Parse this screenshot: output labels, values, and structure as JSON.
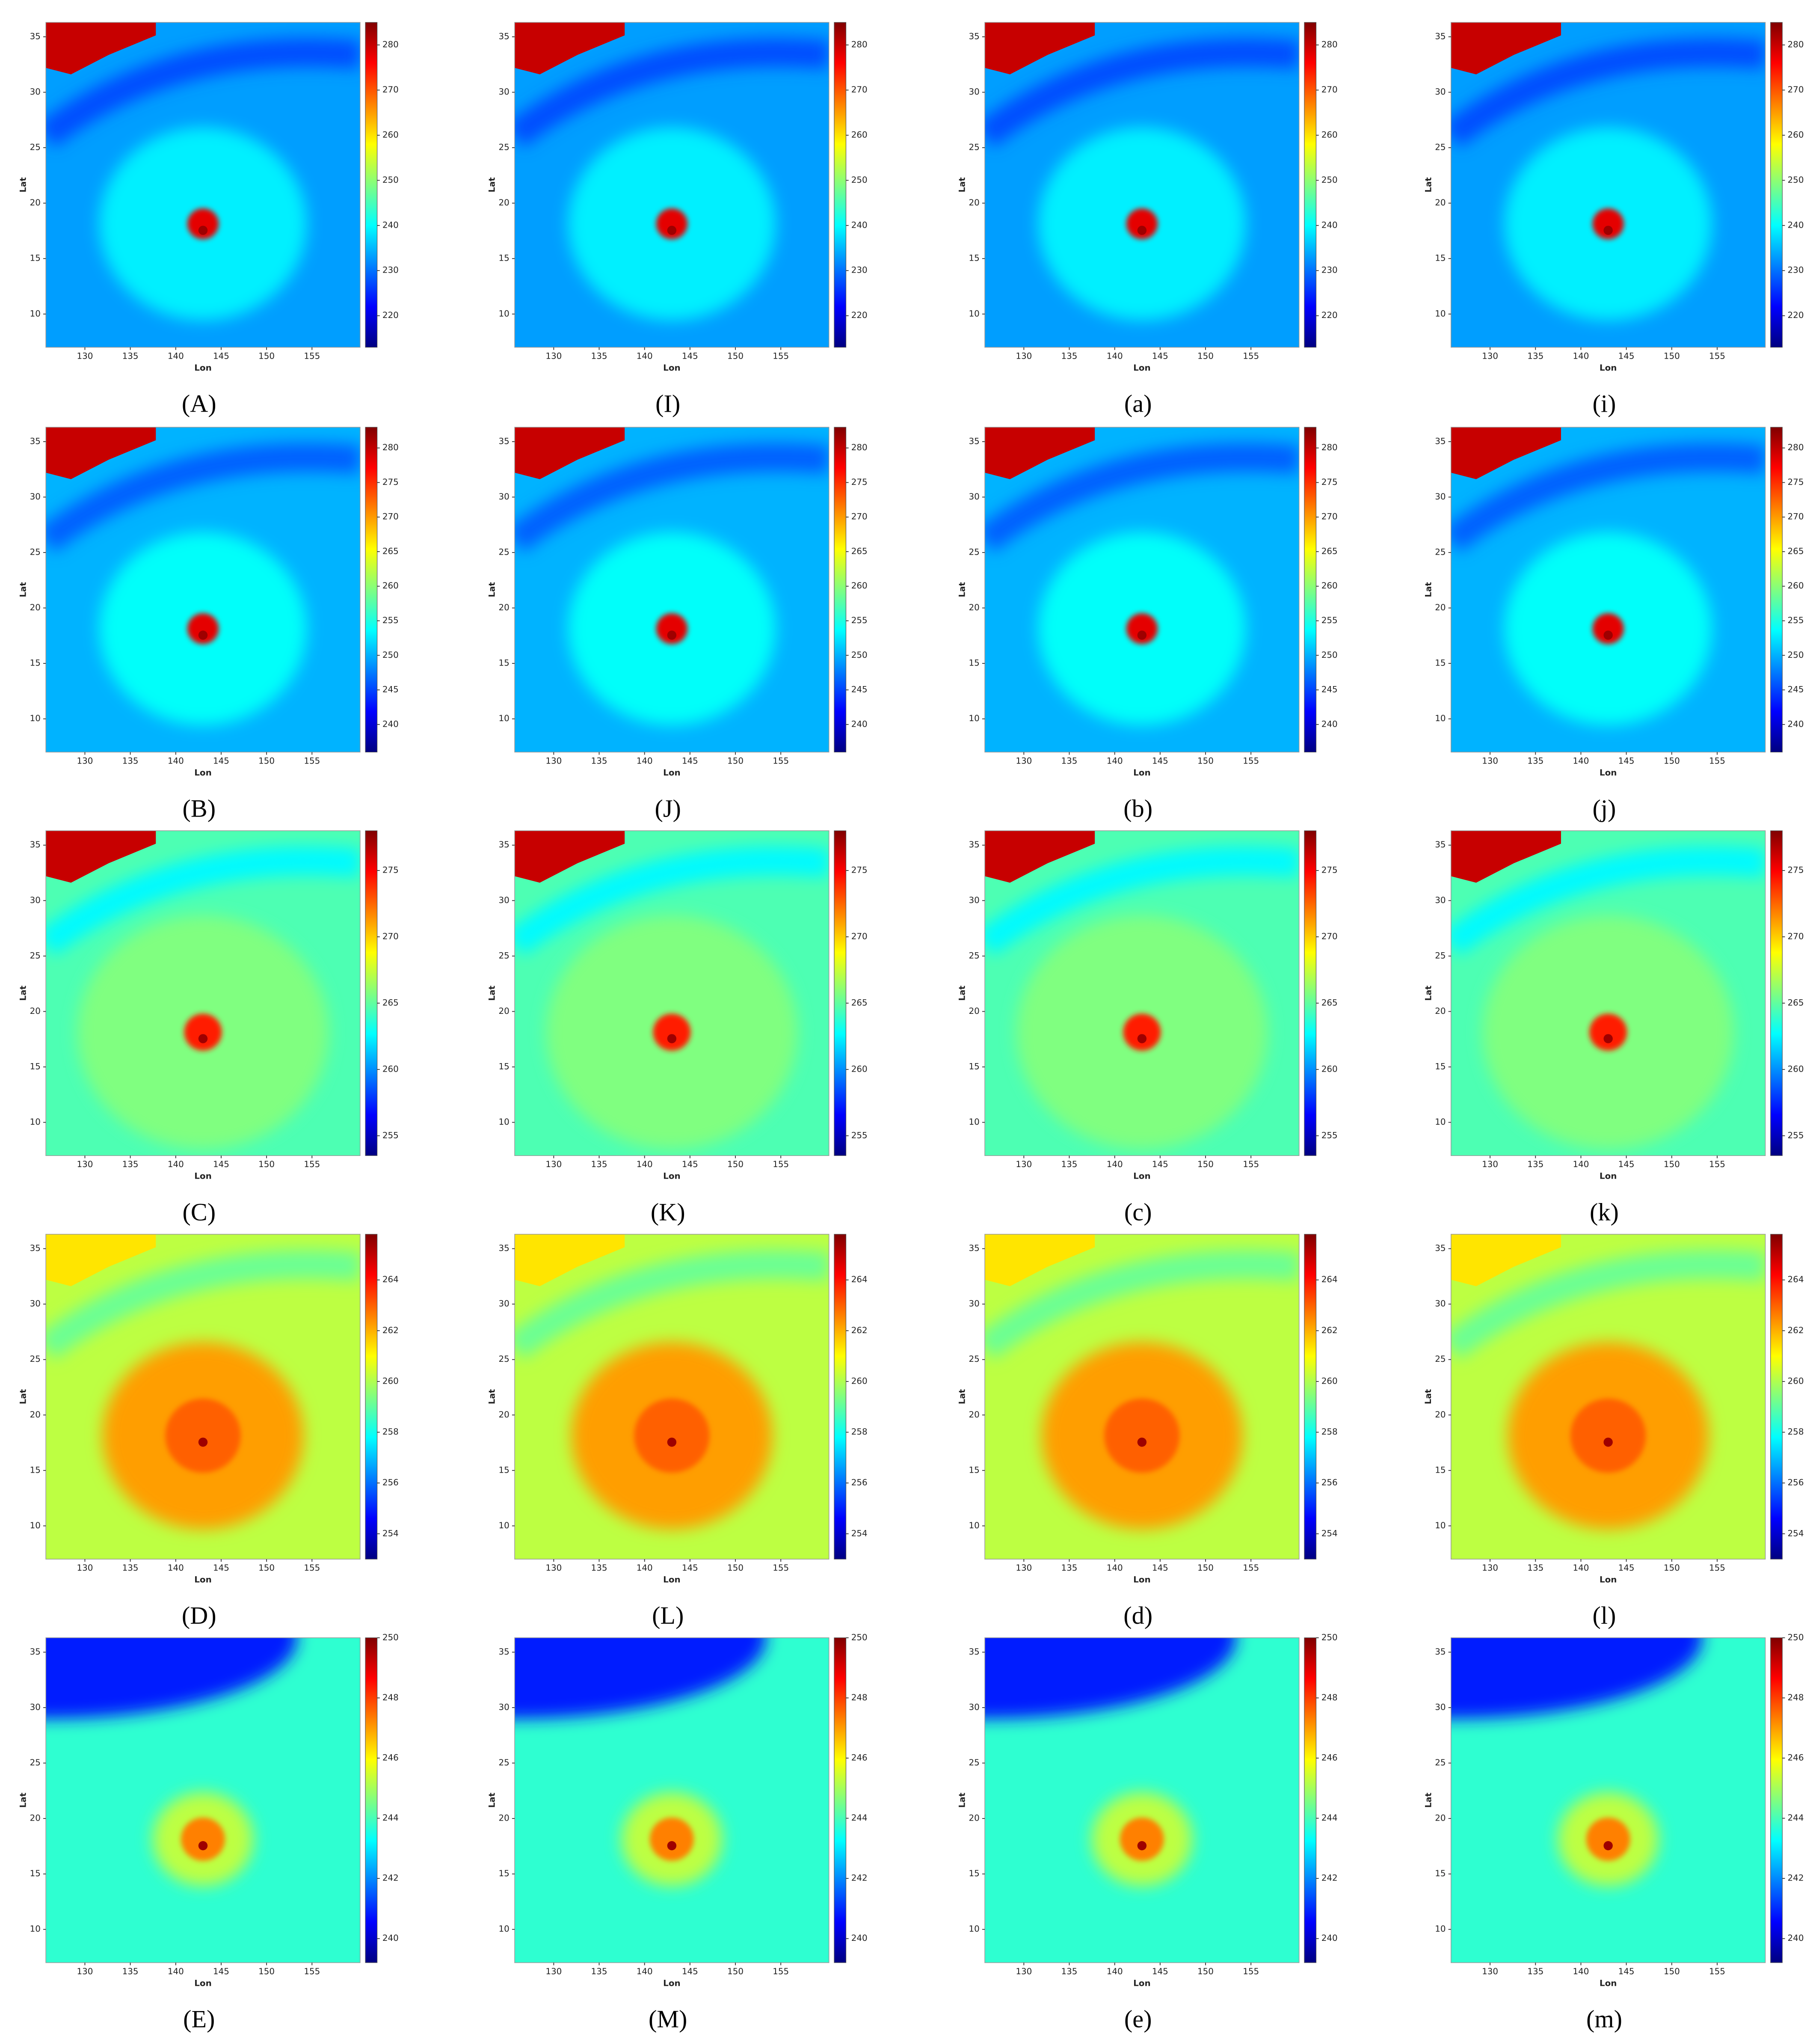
{
  "chart_data": [
    {
      "type": "heatmap",
      "label": "(A)",
      "xlabel": "Lon",
      "ylabel": "Lat",
      "xlim": [
        125.7,
        160.3
      ],
      "ylim": [
        7,
        36.3
      ],
      "xticks": [
        130,
        135,
        140,
        145,
        150,
        155
      ],
      "yticks": [
        10,
        15,
        20,
        25,
        30,
        35
      ],
      "colorbar_lim": [
        213,
        285
      ],
      "colorbar_ticks": [
        220,
        230,
        240,
        250,
        260,
        270,
        280
      ],
      "colormap": "jet"
    },
    {
      "type": "heatmap",
      "label": "(I)",
      "xlabel": "Lon",
      "ylabel": "Lat",
      "xlim": [
        125.7,
        160.3
      ],
      "ylim": [
        7,
        36.3
      ],
      "xticks": [
        130,
        135,
        140,
        145,
        150,
        155
      ],
      "yticks": [
        10,
        15,
        20,
        25,
        30,
        35
      ],
      "colorbar_lim": [
        213,
        285
      ],
      "colorbar_ticks": [
        220,
        230,
        240,
        250,
        260,
        270,
        280
      ],
      "colormap": "jet"
    },
    {
      "type": "heatmap",
      "label": "(a)",
      "xlabel": "Lon",
      "ylabel": "Lat",
      "xlim": [
        125.7,
        160.3
      ],
      "ylim": [
        7,
        36.3
      ],
      "xticks": [
        130,
        135,
        140,
        145,
        150,
        155
      ],
      "yticks": [
        10,
        15,
        20,
        25,
        30,
        35
      ],
      "colorbar_lim": [
        213,
        285
      ],
      "colorbar_ticks": [
        220,
        230,
        240,
        250,
        260,
        270,
        280
      ],
      "colormap": "jet"
    },
    {
      "type": "heatmap",
      "label": "(i)",
      "xlabel": "Lon",
      "ylabel": "Lat",
      "xlim": [
        125.7,
        160.3
      ],
      "ylim": [
        7,
        36.3
      ],
      "xticks": [
        130,
        135,
        140,
        145,
        150,
        155
      ],
      "yticks": [
        10,
        15,
        20,
        25,
        30,
        35
      ],
      "colorbar_lim": [
        213,
        285
      ],
      "colorbar_ticks": [
        220,
        230,
        240,
        250,
        260,
        270,
        280
      ],
      "colormap": "jet"
    },
    {
      "type": "heatmap",
      "label": "(B)",
      "xlabel": "Lon",
      "ylabel": "Lat",
      "xlim": [
        125.7,
        160.3
      ],
      "ylim": [
        7,
        36.3
      ],
      "xticks": [
        130,
        135,
        140,
        145,
        150,
        155
      ],
      "yticks": [
        10,
        15,
        20,
        25,
        30,
        35
      ],
      "colorbar_lim": [
        236,
        283
      ],
      "colorbar_ticks": [
        240,
        245,
        250,
        255,
        260,
        265,
        270,
        275,
        280
      ],
      "colormap": "jet"
    },
    {
      "type": "heatmap",
      "label": "(J)",
      "xlabel": "Lon",
      "ylabel": "Lat",
      "xlim": [
        125.7,
        160.3
      ],
      "ylim": [
        7,
        36.3
      ],
      "xticks": [
        130,
        135,
        140,
        145,
        150,
        155
      ],
      "yticks": [
        10,
        15,
        20,
        25,
        30,
        35
      ],
      "colorbar_lim": [
        236,
        283
      ],
      "colorbar_ticks": [
        240,
        245,
        250,
        255,
        260,
        265,
        270,
        275,
        280
      ],
      "colormap": "jet"
    },
    {
      "type": "heatmap",
      "label": "(b)",
      "xlabel": "Lon",
      "ylabel": "Lat",
      "xlim": [
        125.7,
        160.3
      ],
      "ylim": [
        7,
        36.3
      ],
      "xticks": [
        130,
        135,
        140,
        145,
        150,
        155
      ],
      "yticks": [
        10,
        15,
        20,
        25,
        30,
        35
      ],
      "colorbar_lim": [
        236,
        283
      ],
      "colorbar_ticks": [
        240,
        245,
        250,
        255,
        260,
        265,
        270,
        275,
        280
      ],
      "colormap": "jet"
    },
    {
      "type": "heatmap",
      "label": "(j)",
      "xlabel": "Lon",
      "ylabel": "Lat",
      "xlim": [
        125.7,
        160.3
      ],
      "ylim": [
        7,
        36.3
      ],
      "xticks": [
        130,
        135,
        140,
        145,
        150,
        155
      ],
      "yticks": [
        10,
        15,
        20,
        25,
        30,
        35
      ],
      "colorbar_lim": [
        236,
        283
      ],
      "colorbar_ticks": [
        240,
        245,
        250,
        255,
        260,
        265,
        270,
        275,
        280
      ],
      "colormap": "jet"
    },
    {
      "type": "heatmap",
      "label": "(C)",
      "xlabel": "Lon",
      "ylabel": "Lat",
      "xlim": [
        125.7,
        160.3
      ],
      "ylim": [
        7,
        36.3
      ],
      "xticks": [
        130,
        135,
        140,
        145,
        150,
        155
      ],
      "yticks": [
        10,
        15,
        20,
        25,
        30,
        35
      ],
      "colorbar_lim": [
        253.5,
        278
      ],
      "colorbar_ticks": [
        255,
        260,
        265,
        270,
        275
      ],
      "colormap": "jet"
    },
    {
      "type": "heatmap",
      "label": "(K)",
      "xlabel": "Lon",
      "ylabel": "Lat",
      "xlim": [
        125.7,
        160.3
      ],
      "ylim": [
        7,
        36.3
      ],
      "xticks": [
        130,
        135,
        140,
        145,
        150,
        155
      ],
      "yticks": [
        10,
        15,
        20,
        25,
        30,
        35
      ],
      "colorbar_lim": [
        253.5,
        278
      ],
      "colorbar_ticks": [
        255,
        260,
        265,
        270,
        275
      ],
      "colormap": "jet"
    },
    {
      "type": "heatmap",
      "label": "(c)",
      "xlabel": "Lon",
      "ylabel": "Lat",
      "xlim": [
        125.7,
        160.3
      ],
      "ylim": [
        7,
        36.3
      ],
      "xticks": [
        130,
        135,
        140,
        145,
        150,
        155
      ],
      "yticks": [
        10,
        15,
        20,
        25,
        30,
        35
      ],
      "colorbar_lim": [
        253.5,
        278
      ],
      "colorbar_ticks": [
        255,
        260,
        265,
        270,
        275
      ],
      "colormap": "jet"
    },
    {
      "type": "heatmap",
      "label": "(k)",
      "xlabel": "Lon",
      "ylabel": "Lat",
      "xlim": [
        125.7,
        160.3
      ],
      "ylim": [
        7,
        36.3
      ],
      "xticks": [
        130,
        135,
        140,
        145,
        150,
        155
      ],
      "yticks": [
        10,
        15,
        20,
        25,
        30,
        35
      ],
      "colorbar_lim": [
        253.5,
        278
      ],
      "colorbar_ticks": [
        255,
        260,
        265,
        270,
        275
      ],
      "colormap": "jet"
    },
    {
      "type": "heatmap",
      "label": "(D)",
      "xlabel": "Lon",
      "ylabel": "Lat",
      "xlim": [
        125.7,
        160.3
      ],
      "ylim": [
        7,
        36.3
      ],
      "xticks": [
        130,
        135,
        140,
        145,
        150,
        155
      ],
      "yticks": [
        10,
        15,
        20,
        25,
        30,
        35
      ],
      "colorbar_lim": [
        253,
        265.8
      ],
      "colorbar_ticks": [
        254,
        256,
        258,
        260,
        262,
        264
      ],
      "colormap": "jet"
    },
    {
      "type": "heatmap",
      "label": "(L)",
      "xlabel": "Lon",
      "ylabel": "Lat",
      "xlim": [
        125.7,
        160.3
      ],
      "ylim": [
        7,
        36.3
      ],
      "xticks": [
        130,
        135,
        140,
        145,
        150,
        155
      ],
      "yticks": [
        10,
        15,
        20,
        25,
        30,
        35
      ],
      "colorbar_lim": [
        253,
        265.8
      ],
      "colorbar_ticks": [
        254,
        256,
        258,
        260,
        262,
        264
      ],
      "colormap": "jet"
    },
    {
      "type": "heatmap",
      "label": "(d)",
      "xlabel": "Lon",
      "ylabel": "Lat",
      "xlim": [
        125.7,
        160.3
      ],
      "ylim": [
        7,
        36.3
      ],
      "xticks": [
        130,
        135,
        140,
        145,
        150,
        155
      ],
      "yticks": [
        10,
        15,
        20,
        25,
        30,
        35
      ],
      "colorbar_lim": [
        253,
        265.8
      ],
      "colorbar_ticks": [
        254,
        256,
        258,
        260,
        262,
        264
      ],
      "colormap": "jet"
    },
    {
      "type": "heatmap",
      "label": "(l)",
      "xlabel": "Lon",
      "ylabel": "Lat",
      "xlim": [
        125.7,
        160.3
      ],
      "ylim": [
        7,
        36.3
      ],
      "xticks": [
        130,
        135,
        140,
        145,
        150,
        155
      ],
      "yticks": [
        10,
        15,
        20,
        25,
        30,
        35
      ],
      "colorbar_lim": [
        253,
        265.8
      ],
      "colorbar_ticks": [
        254,
        256,
        258,
        260,
        262,
        264
      ],
      "colormap": "jet"
    },
    {
      "type": "heatmap",
      "label": "(E)",
      "xlabel": "Lon",
      "ylabel": "Lat",
      "xlim": [
        125.7,
        160.3
      ],
      "ylim": [
        7,
        36.3
      ],
      "xticks": [
        130,
        135,
        140,
        145,
        150,
        155
      ],
      "yticks": [
        10,
        15,
        20,
        25,
        30,
        35
      ],
      "colorbar_lim": [
        239.2,
        250
      ],
      "colorbar_ticks": [
        240,
        242,
        244,
        246,
        248,
        250
      ],
      "colormap": "jet"
    },
    {
      "type": "heatmap",
      "label": "(M)",
      "xlabel": "Lon",
      "ylabel": "Lat",
      "xlim": [
        125.7,
        160.3
      ],
      "ylim": [
        7,
        36.3
      ],
      "xticks": [
        130,
        135,
        140,
        145,
        150,
        155
      ],
      "yticks": [
        10,
        15,
        20,
        25,
        30,
        35
      ],
      "colorbar_lim": [
        239.2,
        250
      ],
      "colorbar_ticks": [
        240,
        242,
        244,
        246,
        248,
        250
      ],
      "colormap": "jet"
    },
    {
      "type": "heatmap",
      "label": "(e)",
      "xlabel": "Lon",
      "ylabel": "Lat",
      "xlim": [
        125.7,
        160.3
      ],
      "ylim": [
        7,
        36.3
      ],
      "xticks": [
        130,
        135,
        140,
        145,
        150,
        155
      ],
      "yticks": [
        10,
        15,
        20,
        25,
        30,
        35
      ],
      "colorbar_lim": [
        239.2,
        250
      ],
      "colorbar_ticks": [
        240,
        242,
        244,
        246,
        248,
        250
      ],
      "colormap": "jet"
    },
    {
      "type": "heatmap",
      "label": "(m)",
      "xlabel": "Lon",
      "ylabel": "Lat",
      "xlim": [
        125.7,
        160.3
      ],
      "ylim": [
        7,
        36.3
      ],
      "xticks": [
        130,
        135,
        140,
        145,
        150,
        155
      ],
      "yticks": [
        10,
        15,
        20,
        25,
        30,
        35
      ],
      "colorbar_lim": [
        239.2,
        250
      ],
      "colorbar_ticks": [
        240,
        242,
        244,
        246,
        248,
        250
      ],
      "colormap": "jet"
    }
  ]
}
